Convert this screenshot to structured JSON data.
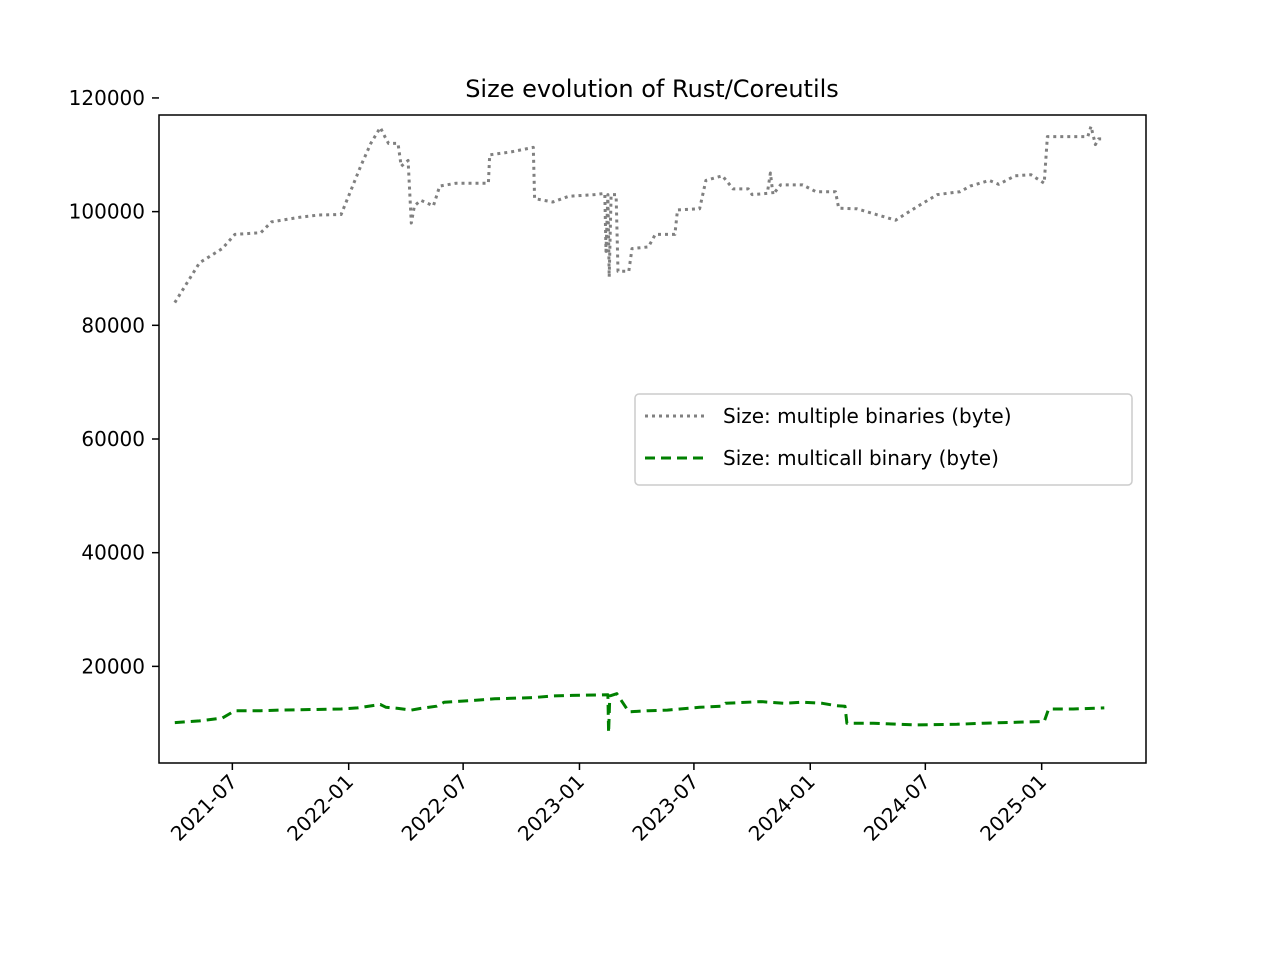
{
  "chart_data": {
    "type": "line",
    "title": "Size evolution of Rust/Coreutils",
    "xlabel": "",
    "ylabel": "",
    "xlim": [
      "2021-03-07",
      "2025-06-15"
    ],
    "ylim": [
      3000,
      117000
    ],
    "x_ticks": [
      "2021-07",
      "2022-01",
      "2022-07",
      "2023-01",
      "2023-07",
      "2024-01",
      "2024-07",
      "2025-01"
    ],
    "y_ticks": [
      20000,
      40000,
      60000,
      80000,
      100000,
      120000
    ],
    "grid": false,
    "legend_position": "center-right",
    "series": [
      {
        "name": "Size: multiple binaries (byte)",
        "color": "#808080",
        "style": "dotted",
        "points": [
          [
            "2021-04-01",
            84000
          ],
          [
            "2021-05-10",
            91000
          ],
          [
            "2021-06-15",
            93500
          ],
          [
            "2021-07-05",
            96000
          ],
          [
            "2021-08-15",
            96300
          ],
          [
            "2021-09-01",
            98200
          ],
          [
            "2021-10-15",
            99000
          ],
          [
            "2021-11-15",
            99400
          ],
          [
            "2021-12-20",
            99500
          ],
          [
            "2022-01-20",
            108000
          ],
          [
            "2022-02-05",
            112000
          ],
          [
            "2022-02-20",
            114800
          ],
          [
            "2022-02-28",
            113000
          ],
          [
            "2022-03-05",
            112000
          ],
          [
            "2022-03-20",
            112000
          ],
          [
            "2022-03-25",
            108000
          ],
          [
            "2022-04-05",
            109000
          ],
          [
            "2022-04-10",
            98000
          ],
          [
            "2022-04-15",
            101000
          ],
          [
            "2022-04-25",
            102000
          ],
          [
            "2022-05-15",
            101000
          ],
          [
            "2022-05-25",
            104500
          ],
          [
            "2022-06-20",
            105000
          ],
          [
            "2022-07-15",
            105000
          ],
          [
            "2022-08-10",
            105000
          ],
          [
            "2022-08-12",
            110000
          ],
          [
            "2022-09-15",
            110500
          ],
          [
            "2022-10-20",
            111300
          ],
          [
            "2022-10-22",
            102300
          ],
          [
            "2022-11-20",
            101700
          ],
          [
            "2022-12-15",
            102700
          ],
          [
            "2023-01-25",
            103000
          ],
          [
            "2023-02-10",
            103200
          ],
          [
            "2023-02-12",
            93000
          ],
          [
            "2023-02-15",
            103000
          ],
          [
            "2023-02-17",
            88500
          ],
          [
            "2023-02-20",
            103000
          ],
          [
            "2023-02-28",
            103000
          ],
          [
            "2023-03-03",
            89500
          ],
          [
            "2023-03-20",
            89500
          ],
          [
            "2023-03-25",
            93500
          ],
          [
            "2023-04-20",
            93800
          ],
          [
            "2023-05-01",
            96000
          ],
          [
            "2023-06-01",
            96000
          ],
          [
            "2023-06-05",
            100300
          ],
          [
            "2023-07-10",
            100500
          ],
          [
            "2023-07-20",
            105500
          ],
          [
            "2023-08-15",
            106300
          ],
          [
            "2023-09-01",
            104000
          ],
          [
            "2023-09-25",
            104000
          ],
          [
            "2023-10-01",
            103000
          ],
          [
            "2023-10-25",
            103200
          ],
          [
            "2023-10-30",
            106800
          ],
          [
            "2023-11-03",
            103000
          ],
          [
            "2023-11-15",
            104700
          ],
          [
            "2023-12-20",
            104700
          ],
          [
            "2024-01-10",
            103500
          ],
          [
            "2024-02-10",
            103500
          ],
          [
            "2024-02-15",
            100600
          ],
          [
            "2024-03-15",
            100500
          ],
          [
            "2024-05-15",
            98500
          ],
          [
            "2024-06-20",
            101000
          ],
          [
            "2024-07-20",
            103000
          ],
          [
            "2024-08-25",
            103500
          ],
          [
            "2024-09-10",
            104500
          ],
          [
            "2024-10-10",
            105500
          ],
          [
            "2024-10-25",
            104800
          ],
          [
            "2024-11-20",
            106300
          ],
          [
            "2024-12-15",
            106500
          ],
          [
            "2025-01-05",
            105000
          ],
          [
            "2025-01-10",
            113200
          ],
          [
            "2025-02-20",
            113200
          ],
          [
            "2025-03-15",
            113200
          ],
          [
            "2025-03-20",
            115000
          ],
          [
            "2025-03-27",
            111800
          ],
          [
            "2025-04-01",
            112800
          ],
          [
            "2025-04-10",
            112800
          ]
        ]
      },
      {
        "name": "Size: multicall binary (byte)",
        "color": "#008000",
        "style": "dashed",
        "points": [
          [
            "2021-04-01",
            10100
          ],
          [
            "2021-05-10",
            10400
          ],
          [
            "2021-06-15",
            10900
          ],
          [
            "2021-07-05",
            12200
          ],
          [
            "2021-08-15",
            12200
          ],
          [
            "2021-09-15",
            12300
          ],
          [
            "2021-12-20",
            12500
          ],
          [
            "2022-01-15",
            12700
          ],
          [
            "2022-02-20",
            13300
          ],
          [
            "2022-03-01",
            12800
          ],
          [
            "2022-03-20",
            12600
          ],
          [
            "2022-04-10",
            12300
          ],
          [
            "2022-04-25",
            12600
          ],
          [
            "2022-05-20",
            13000
          ],
          [
            "2022-06-01",
            13700
          ],
          [
            "2022-07-15",
            14000
          ],
          [
            "2022-08-20",
            14300
          ],
          [
            "2022-10-20",
            14500
          ],
          [
            "2022-11-20",
            14800
          ],
          [
            "2022-12-20",
            14900
          ],
          [
            "2023-02-15",
            15000
          ],
          [
            "2023-02-16",
            8300
          ],
          [
            "2023-02-18",
            14800
          ],
          [
            "2023-03-01",
            15200
          ],
          [
            "2023-03-20",
            12000
          ],
          [
            "2023-04-20",
            12200
          ],
          [
            "2023-05-20",
            12300
          ],
          [
            "2023-07-10",
            12800
          ],
          [
            "2023-08-15",
            13000
          ],
          [
            "2023-08-20",
            13500
          ],
          [
            "2023-10-15",
            13800
          ],
          [
            "2023-11-20",
            13500
          ],
          [
            "2023-12-20",
            13700
          ],
          [
            "2024-01-20",
            13500
          ],
          [
            "2024-02-10",
            13100
          ],
          [
            "2024-02-25",
            13000
          ],
          [
            "2024-02-28",
            10000
          ],
          [
            "2024-04-10",
            10000
          ],
          [
            "2024-06-15",
            9700
          ],
          [
            "2024-08-20",
            9800
          ],
          [
            "2024-10-01",
            10000
          ],
          [
            "2024-11-01",
            10100
          ],
          [
            "2025-01-05",
            10300
          ],
          [
            "2025-01-12",
            12500
          ],
          [
            "2025-02-20",
            12500
          ],
          [
            "2025-04-10",
            12700
          ]
        ]
      }
    ]
  }
}
